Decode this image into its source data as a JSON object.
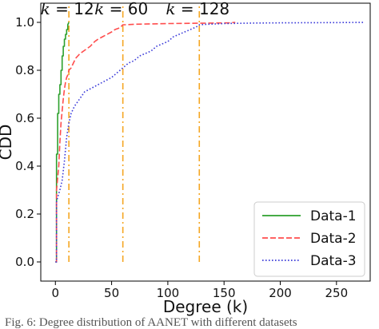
{
  "chart_data": {
    "type": "line",
    "xlabel": "Degree (k)",
    "ylabel": "CDD",
    "xlim": [
      -13,
      280
    ],
    "ylim": [
      -0.08,
      1.08
    ],
    "xticks": [
      0,
      50,
      100,
      150,
      200,
      250
    ],
    "yticks": [
      0.0,
      0.2,
      0.4,
      0.6,
      0.8,
      1.0
    ],
    "legend_placement": "bottom-right",
    "grid": false,
    "series": [
      {
        "name": "Data-1",
        "color": "#2ca02c",
        "linestyle": "solid",
        "x": [
          0,
          1,
          1,
          2,
          2,
          3,
          3,
          4,
          4,
          5,
          5,
          6,
          6,
          7,
          7,
          8,
          8,
          9,
          9,
          10,
          10,
          11,
          11,
          12
        ],
        "y": [
          0.0,
          0.0,
          0.45,
          0.45,
          0.62,
          0.62,
          0.7,
          0.7,
          0.74,
          0.74,
          0.8,
          0.8,
          0.86,
          0.86,
          0.9,
          0.9,
          0.93,
          0.93,
          0.95,
          0.95,
          0.97,
          0.97,
          0.99,
          1.0
        ]
      },
      {
        "name": "Data-2",
        "color": "#ff4d4d",
        "linestyle": "dashed",
        "x": [
          0,
          1,
          1,
          3,
          4,
          5,
          6,
          7,
          8,
          9,
          10,
          11,
          12,
          14,
          16,
          18,
          20,
          22,
          25,
          28,
          31,
          35,
          38,
          42,
          46,
          50,
          53,
          56,
          58,
          60,
          63,
          70,
          80,
          100,
          120,
          140,
          155,
          160
        ],
        "y": [
          0.0,
          0.0,
          0.3,
          0.4,
          0.5,
          0.58,
          0.63,
          0.68,
          0.72,
          0.75,
          0.77,
          0.78,
          0.8,
          0.81,
          0.83,
          0.85,
          0.86,
          0.87,
          0.88,
          0.89,
          0.9,
          0.92,
          0.93,
          0.94,
          0.95,
          0.96,
          0.97,
          0.975,
          0.98,
          0.99,
          0.99,
          0.992,
          0.993,
          0.995,
          0.996,
          0.997,
          0.998,
          1.0
        ]
      },
      {
        "name": "Data-3",
        "color": "#3b3bd9",
        "linestyle": "dotted",
        "x": [
          0,
          1,
          1,
          2,
          4,
          6,
          8,
          10,
          12,
          14,
          17,
          20,
          23,
          26,
          30,
          34,
          38,
          42,
          46,
          50,
          55,
          60,
          65,
          70,
          75,
          80,
          85,
          90,
          95,
          100,
          105,
          110,
          115,
          120,
          125,
          128,
          135,
          150,
          175,
          200,
          250,
          275
        ],
        "y": [
          0.0,
          0.0,
          0.25,
          0.27,
          0.3,
          0.34,
          0.42,
          0.52,
          0.58,
          0.62,
          0.65,
          0.67,
          0.69,
          0.71,
          0.72,
          0.73,
          0.74,
          0.75,
          0.76,
          0.77,
          0.79,
          0.81,
          0.83,
          0.84,
          0.86,
          0.87,
          0.88,
          0.9,
          0.91,
          0.92,
          0.94,
          0.95,
          0.96,
          0.97,
          0.98,
          0.99,
          0.992,
          0.995,
          0.997,
          0.998,
          0.999,
          1.0
        ]
      }
    ],
    "vlines": [
      {
        "x": 12,
        "label_var": "k",
        "label_eq": " = 12"
      },
      {
        "x": 60,
        "label_var": "k",
        "label_eq": " = 60"
      },
      {
        "x": 128,
        "label_var": "k",
        "label_eq": " = 128"
      }
    ],
    "vline_color": "#f5a623"
  },
  "caption": "Fig. 6: Degree distribution of AANET with different datasets"
}
